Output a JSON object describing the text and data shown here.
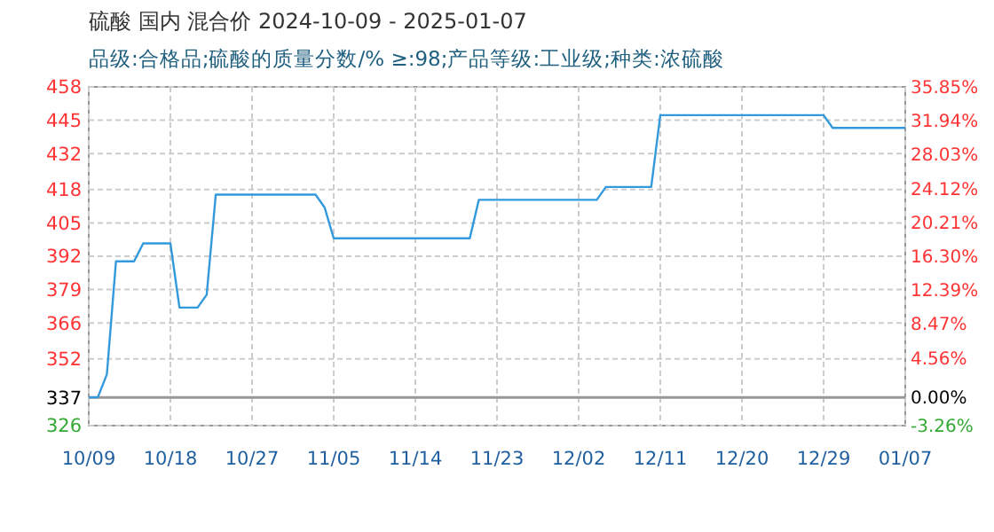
{
  "chart_data": {
    "type": "line",
    "title": "硫酸 国内 混合价 2024-10-09 - 2025-01-07",
    "subtitle": "品级:合格品;硫酸的质量分数/% ≥:98;产品等级:工业级;种类:浓硫酸",
    "x": [
      "2024-10-09",
      "2024-10-10",
      "2024-10-11",
      "2024-10-12",
      "2024-10-14",
      "2024-10-15",
      "2024-10-18",
      "2024-10-19",
      "2024-10-21",
      "2024-10-22",
      "2024-10-23",
      "2024-11-03",
      "2024-11-04",
      "2024-11-05",
      "2024-11-20",
      "2024-11-21",
      "2024-12-04",
      "2024-12-05",
      "2024-12-10",
      "2024-12-11",
      "2024-12-29",
      "2024-12-30",
      "2025-01-07"
    ],
    "series": [
      {
        "color": "#3399dd",
        "values": [
          337,
          337,
          346,
          390,
          390,
          397,
          397,
          372,
          372,
          377,
          416,
          416,
          411,
          399,
          399,
          414,
          414,
          419,
          419,
          447,
          447,
          442,
          442
        ]
      }
    ],
    "xlim": [
      "2024-10-09",
      "2025-01-07"
    ],
    "xticks": [
      {
        "value": "2024-10-09",
        "label": "10/09"
      },
      {
        "value": "2024-10-18",
        "label": "10/18"
      },
      {
        "value": "2024-10-27",
        "label": "10/27"
      },
      {
        "value": "2024-11-05",
        "label": "11/05"
      },
      {
        "value": "2024-11-14",
        "label": "11/14"
      },
      {
        "value": "2024-11-23",
        "label": "11/23"
      },
      {
        "value": "2024-12-02",
        "label": "12/02"
      },
      {
        "value": "2024-12-11",
        "label": "12/11"
      },
      {
        "value": "2024-12-20",
        "label": "12/20"
      },
      {
        "value": "2024-12-29",
        "label": "12/29"
      },
      {
        "value": "2025-01-07",
        "label": "01/07"
      }
    ],
    "ylim": [
      326,
      458
    ],
    "yticks": [
      458,
      445,
      432,
      418,
      405,
      392,
      379,
      366,
      352,
      337,
      326
    ],
    "y2lim": [
      -3.26,
      35.85
    ],
    "y2ticks": [
      {
        "value": 35.85,
        "label": "35.85%"
      },
      {
        "value": 31.94,
        "label": "31.94%"
      },
      {
        "value": 28.03,
        "label": "28.03%"
      },
      {
        "value": 24.12,
        "label": "24.12%"
      },
      {
        "value": 20.21,
        "label": "20.21%"
      },
      {
        "value": 16.3,
        "label": "16.30%"
      },
      {
        "value": 12.39,
        "label": "12.39%"
      },
      {
        "value": 8.47,
        "label": "8.47%"
      },
      {
        "value": 4.56,
        "label": "4.56%"
      },
      {
        "value": 0,
        "label": "0.00%"
      },
      {
        "value": -3.26,
        "label": "-3.26%"
      }
    ],
    "ref_lines": [
      {
        "axis": "y2",
        "value": 0,
        "color": "#999999"
      }
    ],
    "grid": true
  }
}
